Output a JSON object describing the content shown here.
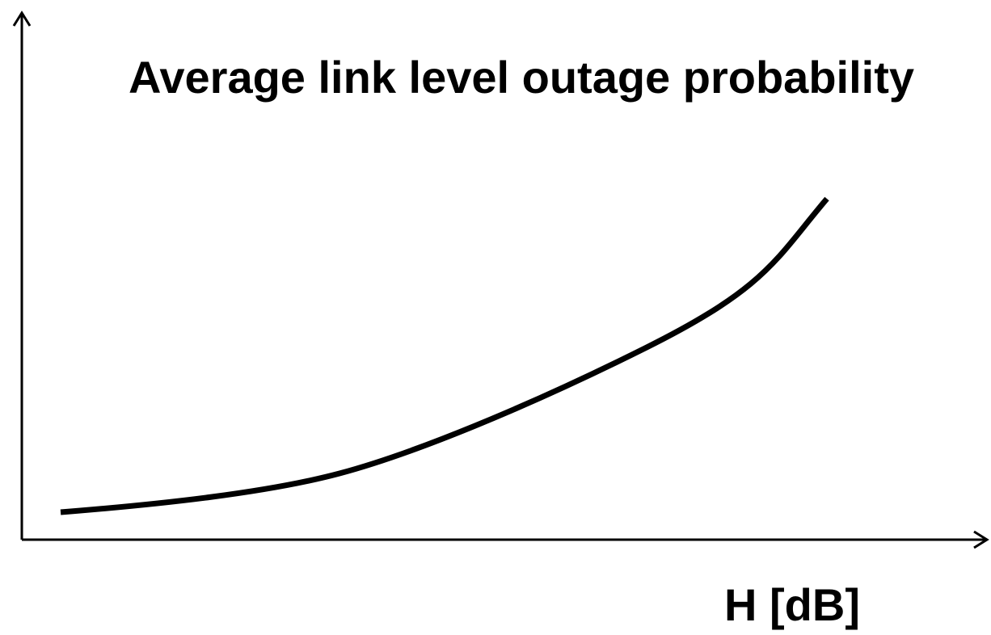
{
  "title": "Average link level outage probability",
  "x_axis_label": "H [dB]"
}
